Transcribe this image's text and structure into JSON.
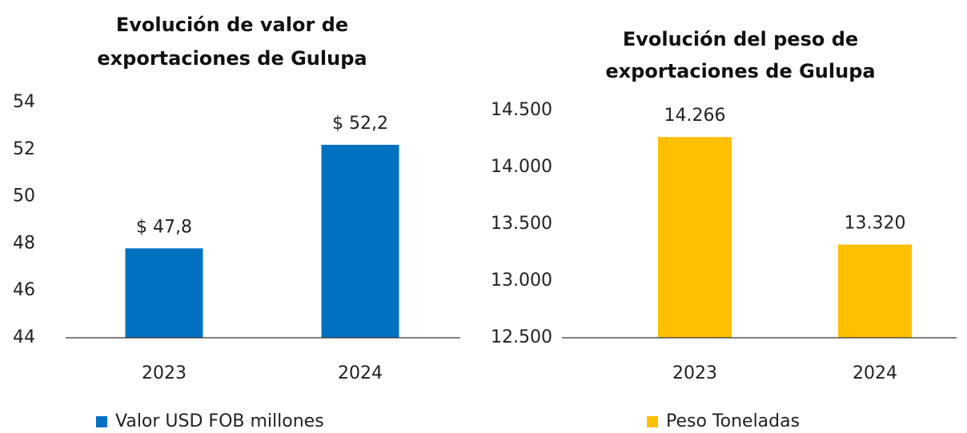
{
  "chart_data": [
    {
      "type": "bar",
      "title": [
        "Evolución de valor de",
        "exportaciones de Gulupa"
      ],
      "categories": [
        "2023",
        "2024"
      ],
      "series": [
        {
          "name": "Valor USD FOB millones",
          "color": "#0070c0",
          "values": [
            47.8,
            52.2
          ],
          "value_labels": [
            "$ 47,8",
            "$ 52,2"
          ]
        }
      ],
      "ylim": [
        44,
        54
      ],
      "yticks": [
        44,
        46,
        48,
        50,
        52,
        54
      ],
      "grid": false,
      "legend": "bottom"
    },
    {
      "type": "bar",
      "title": [
        "Evolución del peso de",
        "exportaciones de Gulupa"
      ],
      "categories": [
        "2023",
        "2024"
      ],
      "series": [
        {
          "name": "Peso Toneladas",
          "color": "#ffc000",
          "values": [
            14266,
            13320
          ],
          "value_labels": [
            "14.266",
            "13.320"
          ]
        }
      ],
      "ylim": [
        12500,
        14500
      ],
      "yticks": [
        {
          "value": 12500,
          "label": "12.500"
        },
        {
          "value": 13000,
          "label": "13.000"
        },
        {
          "value": 13500,
          "label": "13.500"
        },
        {
          "value": 14000,
          "label": "14.000"
        },
        {
          "value": 14500,
          "label": "14.500"
        }
      ],
      "grid": false,
      "legend": "bottom"
    }
  ]
}
